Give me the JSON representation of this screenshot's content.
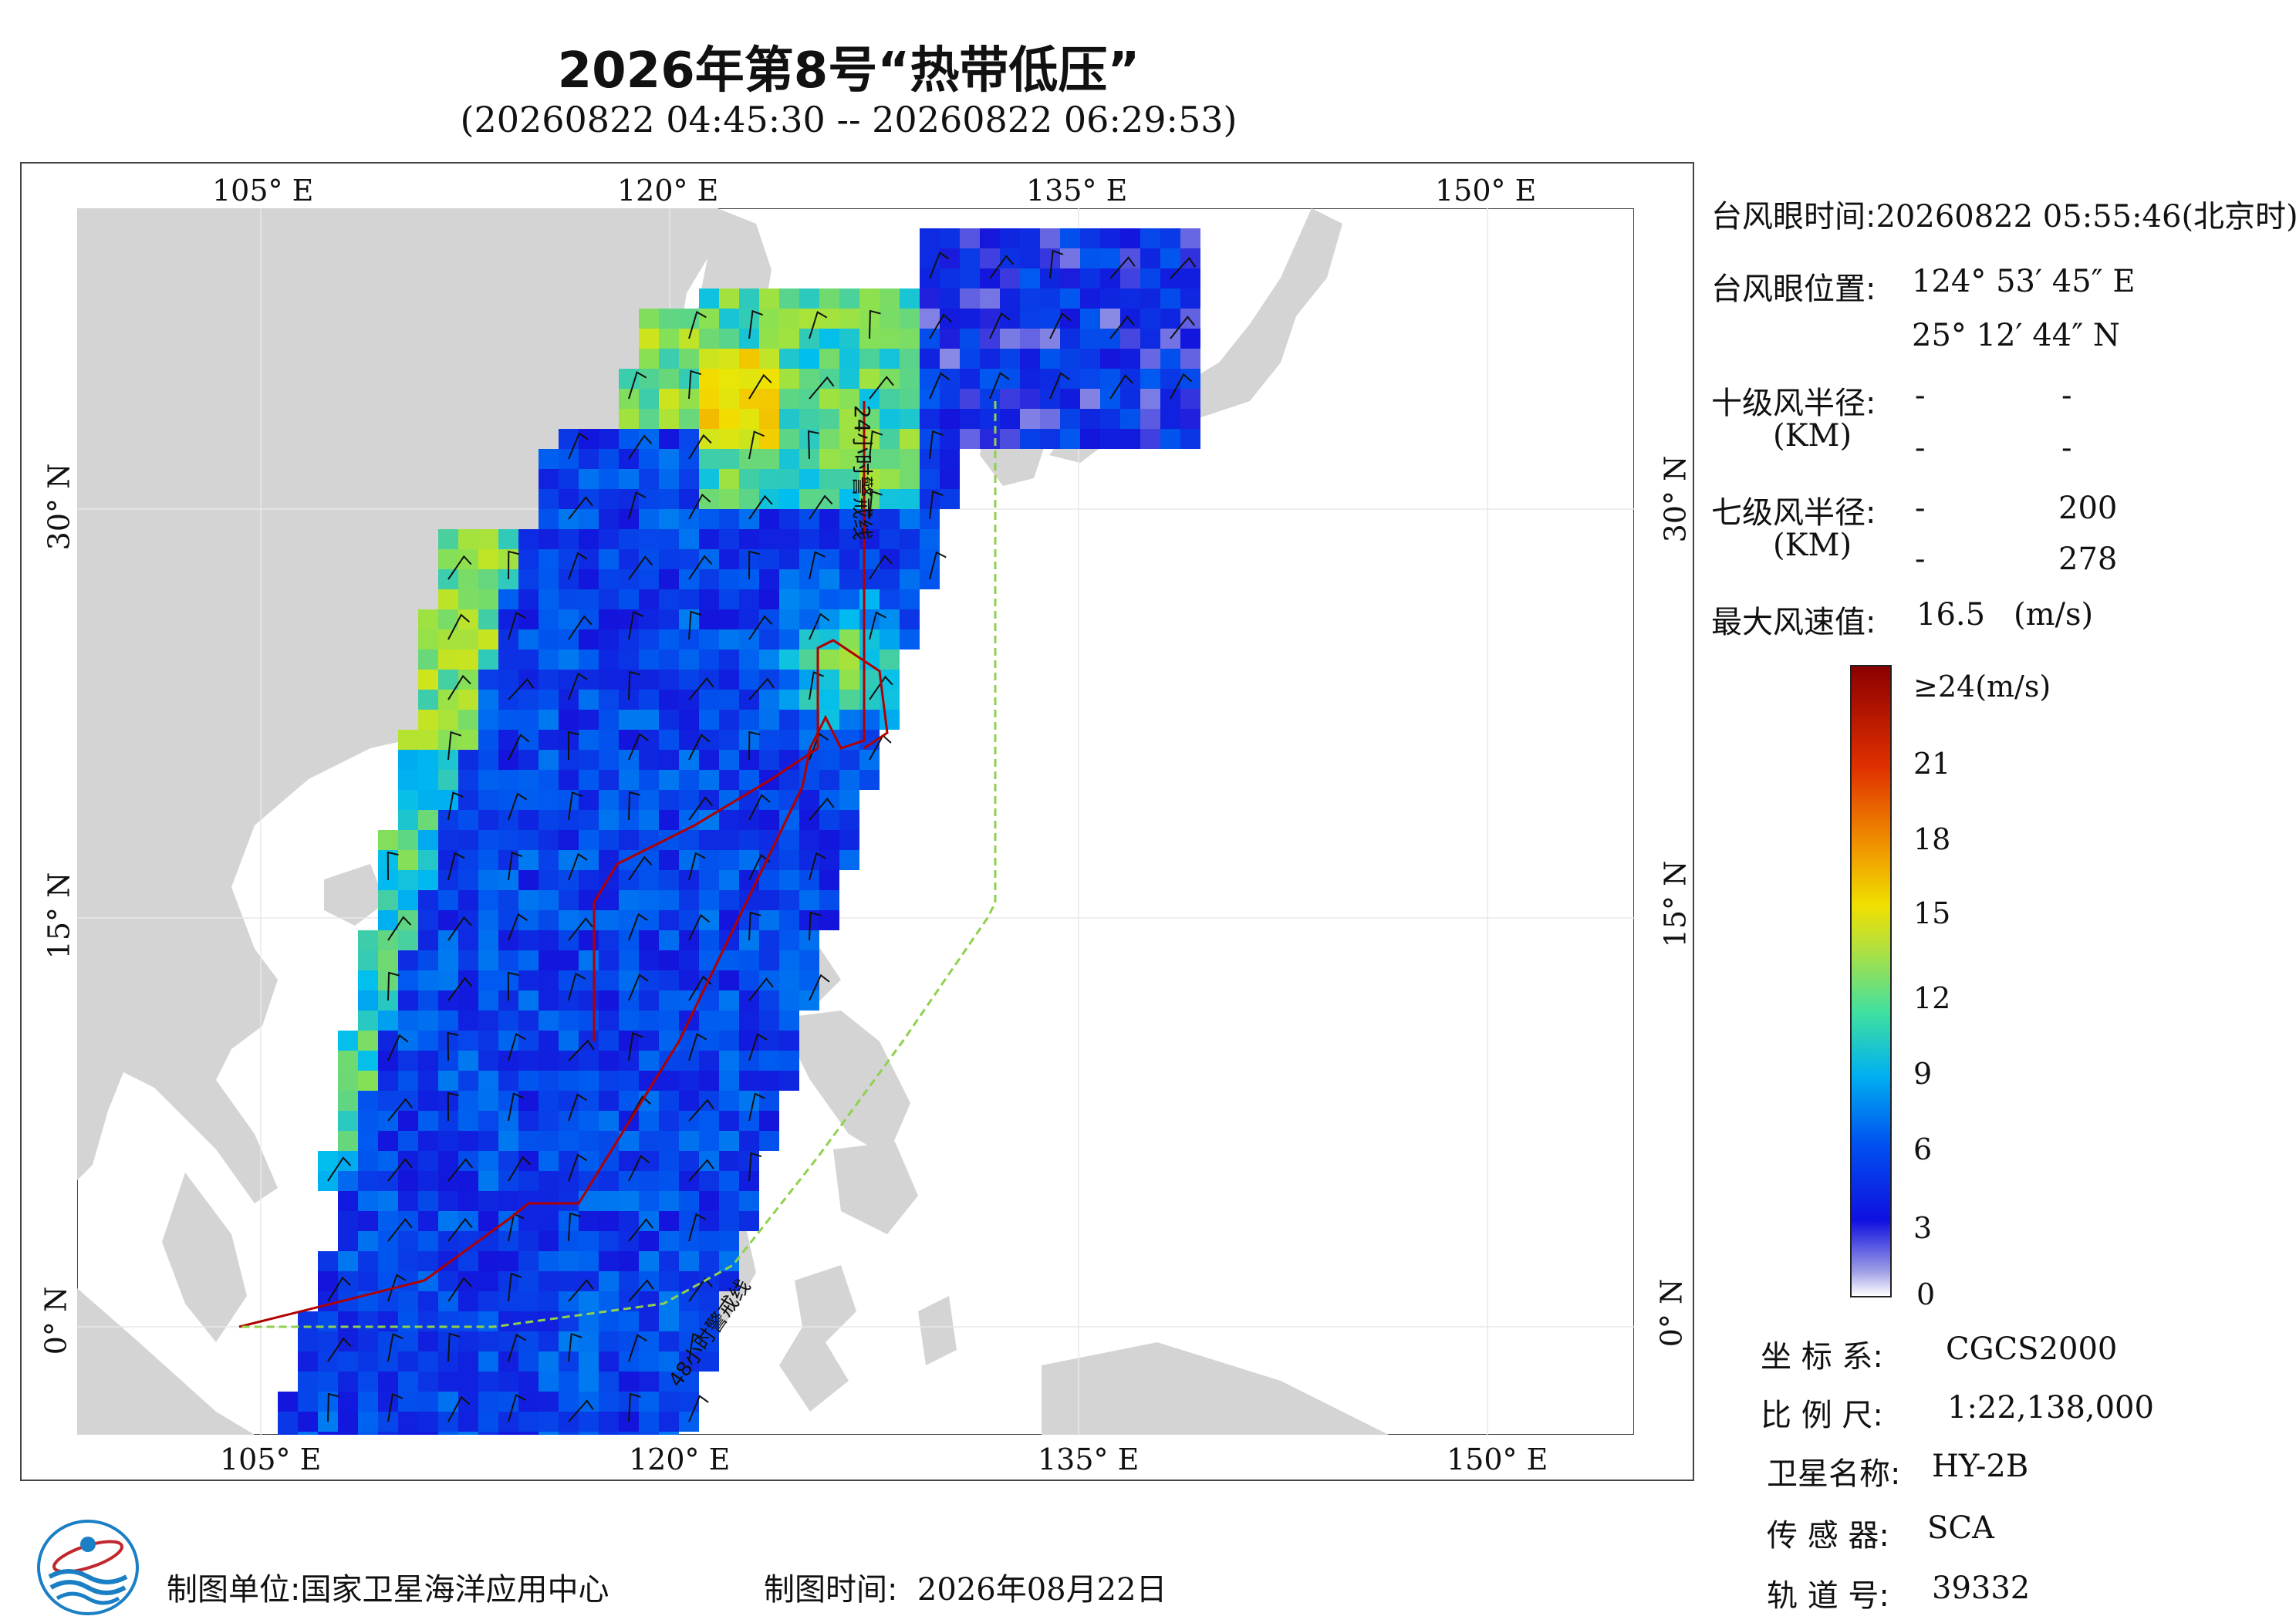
{
  "header": {
    "title": "2026年第8号“热带低压”",
    "subtitle": "(20260822 04:45:30 -- 20260822 06:29:53)"
  },
  "axes": {
    "top_lon_labels": [
      "105° E",
      "120° E",
      "135° E",
      "150° E"
    ],
    "bottom_lon_labels": [
      "105° E",
      "120° E",
      "135° E",
      "150° E"
    ],
    "left_lat_labels": [
      "30° N",
      "15° N",
      "0° N"
    ],
    "right_lat_labels": [
      "30° N",
      "15° N",
      "0° N"
    ]
  },
  "map": {
    "lon_range": [
      98,
      155
    ],
    "lat_range": [
      -4,
      41
    ],
    "line_labels": {
      "line24": "24小时警戒线",
      "line48": "48小时警戒线"
    },
    "colors": {
      "land": "#d4d4d4",
      "sea": "#ffffff",
      "warning_line": "#b00000",
      "green_line": "#8fd14f"
    }
  },
  "info": {
    "eye_time_label": "台风眼时间:",
    "eye_time_value": "20260822 05:55:46(北京时)",
    "eye_pos_label": "台风眼位置:",
    "eye_lon": "124° 53′ 45″ E",
    "eye_lat": "25° 12′ 44″ N",
    "r10_label": "十级风半径:",
    "km_label": "(KM)",
    "r10_values": [
      "-",
      "-",
      "-",
      "-"
    ],
    "r7_label": "七级风半径:",
    "r7_values": [
      "-",
      "200",
      "-",
      "278"
    ],
    "max_wind_label": "最大风速值:",
    "max_wind_value": "16.5",
    "max_wind_unit": "(m/s)"
  },
  "colorbar": {
    "ticks": [
      "≥24(m/s)",
      "21",
      "18",
      "15",
      "12",
      "9",
      "6",
      "3",
      "0"
    ]
  },
  "meta": {
    "coord_label": "坐 标 系:",
    "coord_value": "CGCS2000",
    "scale_label": "比 例 尺:",
    "scale_value": "1:22,138,000",
    "sat_label": "卫星名称:",
    "sat_value": "HY-2B",
    "sensor_label": "传 感 器:",
    "sensor_value": "SCA",
    "orbit_label": "轨 道 号:",
    "orbit_value": "39332"
  },
  "footer": {
    "unit_label": "制图单位:",
    "unit_value": "国家卫星海洋应用中心",
    "time_label": "制图时间:",
    "time_value": "2026年08月22日"
  }
}
